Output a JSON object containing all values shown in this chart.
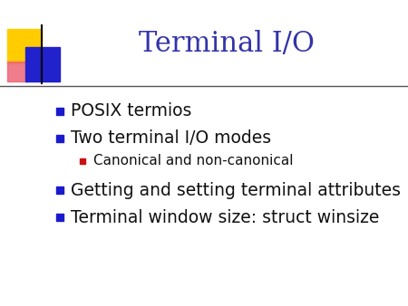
{
  "title": "Terminal I/O",
  "title_color": "#3333aa",
  "title_fontsize": 22,
  "background_color": "#ffffff",
  "slide_line_color": "#555555",
  "bullet_color": "#1a1acc",
  "sub_bullet_color": "#cc1111",
  "text_color": "#111111",
  "bullet_items": [
    {
      "text": "POSIX termios",
      "level": 0
    },
    {
      "text": "Two terminal I/O modes",
      "level": 0
    },
    {
      "text": "Canonical and non-canonical",
      "level": 1
    },
    {
      "text": "Getting and setting terminal attributes",
      "level": 0
    },
    {
      "text": "Terminal window size: struct winsize",
      "level": 0
    }
  ],
  "bullet_fontsize": 13.5,
  "sub_bullet_fontsize": 11,
  "logo_colors": {
    "yellow": "#ffcc00",
    "blue": "#2222cc",
    "red": "#dd1111",
    "pink": "#ee6677"
  }
}
